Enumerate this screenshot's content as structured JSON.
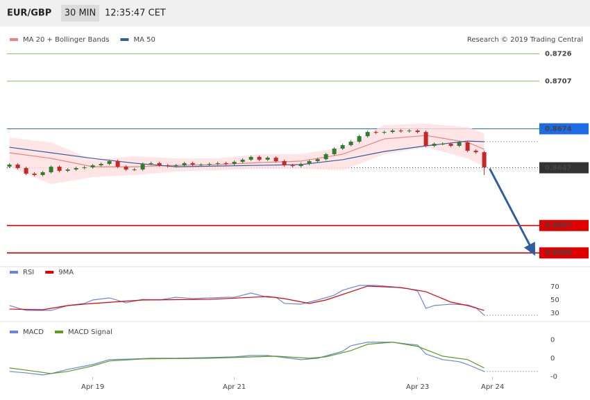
{
  "header": {
    "symbol": "EUR/GBP",
    "interval": "30 MIN",
    "time": "12:35:47 CET"
  },
  "credit": "Research © 2019 Trading Central",
  "chart_data": [
    {
      "type": "candlestick",
      "xlim": [
        -0.3,
        63.45
      ],
      "ylim": [
        0.8578,
        0.8744
      ],
      "up_color": "#2e7d32",
      "down_color": "#c62828",
      "x": [
        0,
        1,
        2,
        3,
        4,
        5,
        6,
        7,
        8,
        9,
        10,
        11,
        12,
        13,
        14,
        15,
        16,
        17,
        18,
        19,
        20,
        21,
        22,
        23,
        24,
        25,
        26,
        27,
        28,
        29,
        30,
        31,
        32,
        33,
        34,
        35,
        36,
        37,
        38,
        39,
        40,
        41,
        42,
        43,
        44,
        45,
        46,
        47,
        48,
        49,
        50,
        51,
        52,
        53,
        54,
        55,
        56,
        57
      ],
      "open": [
        0.86478,
        0.86492,
        0.86468,
        0.86429,
        0.8642,
        0.86439,
        0.86477,
        0.86449,
        0.86458,
        0.86468,
        0.86473,
        0.86487,
        0.86497,
        0.86516,
        0.86477,
        0.86458,
        0.86458,
        0.86497,
        0.86502,
        0.86487,
        0.86482,
        0.86487,
        0.86502,
        0.86492,
        0.86492,
        0.86497,
        0.86502,
        0.86497,
        0.86511,
        0.86526,
        0.86545,
        0.86526,
        0.8654,
        0.86516,
        0.86487,
        0.86482,
        0.86497,
        0.86516,
        0.8653,
        0.86564,
        0.86603,
        0.86627,
        0.86651,
        0.86689,
        0.86718,
        0.86713,
        0.86718,
        0.86728,
        0.86723,
        0.86728,
        0.86718,
        0.86622,
        0.86636,
        0.86636,
        0.86622,
        0.86646,
        0.86588,
        0.86578
      ],
      "high": [
        0.86502,
        0.86502,
        0.86478,
        0.86439,
        0.86449,
        0.86487,
        0.86487,
        0.86468,
        0.86478,
        0.86483,
        0.86497,
        0.86507,
        0.86526,
        0.86526,
        0.86487,
        0.86468,
        0.86507,
        0.86512,
        0.86512,
        0.86497,
        0.86497,
        0.86512,
        0.86512,
        0.86502,
        0.86507,
        0.86512,
        0.86512,
        0.86521,
        0.86536,
        0.86555,
        0.86555,
        0.8655,
        0.8655,
        0.86526,
        0.86497,
        0.86507,
        0.86526,
        0.8654,
        0.86574,
        0.86613,
        0.86637,
        0.86661,
        0.86699,
        0.86728,
        0.86728,
        0.86728,
        0.86738,
        0.86738,
        0.86738,
        0.86738,
        0.86728,
        0.86646,
        0.86646,
        0.86646,
        0.86656,
        0.86656,
        0.86598,
        0.86588
      ],
      "low": [
        0.86468,
        0.86458,
        0.86419,
        0.8641,
        0.8641,
        0.86429,
        0.86439,
        0.86439,
        0.86448,
        0.86458,
        0.86463,
        0.86477,
        0.86487,
        0.86467,
        0.86448,
        0.86448,
        0.86448,
        0.86487,
        0.86477,
        0.86472,
        0.86472,
        0.86477,
        0.86482,
        0.86482,
        0.86482,
        0.86487,
        0.86487,
        0.86487,
        0.86501,
        0.86516,
        0.86516,
        0.86516,
        0.86506,
        0.86477,
        0.86472,
        0.86472,
        0.86487,
        0.86506,
        0.8652,
        0.86554,
        0.86593,
        0.86617,
        0.86641,
        0.86679,
        0.86703,
        0.86703,
        0.86708,
        0.86713,
        0.86713,
        0.86708,
        0.86612,
        0.86612,
        0.86626,
        0.86612,
        0.86612,
        0.86578,
        0.86568,
        0.8642
      ],
      "close": [
        0.86492,
        0.86468,
        0.86429,
        0.8642,
        0.86439,
        0.86477,
        0.86449,
        0.86458,
        0.86468,
        0.86473,
        0.86487,
        0.86497,
        0.86516,
        0.86477,
        0.86458,
        0.86458,
        0.86497,
        0.86502,
        0.86487,
        0.86482,
        0.86487,
        0.86502,
        0.86492,
        0.86492,
        0.86497,
        0.86502,
        0.86497,
        0.86511,
        0.86526,
        0.86545,
        0.86526,
        0.8654,
        0.86516,
        0.86487,
        0.86482,
        0.86497,
        0.86516,
        0.8653,
        0.86564,
        0.86603,
        0.86627,
        0.86651,
        0.86689,
        0.86718,
        0.86713,
        0.86718,
        0.86728,
        0.86723,
        0.86728,
        0.86718,
        0.86622,
        0.86636,
        0.86636,
        0.86622,
        0.86646,
        0.86588,
        0.86578,
        0.86473
      ],
      "series": [
        {
          "name": "MA 20 + Bollinger Bands",
          "color": "#f08080",
          "band_color": "#ffdede",
          "x": [
            0,
            5,
            10,
            15,
            20,
            25,
            30,
            35,
            40,
            45,
            50,
            55,
            57
          ],
          "values": [
            0.86574,
            0.86535,
            0.86477,
            0.86477,
            0.86487,
            0.86492,
            0.86506,
            0.86516,
            0.86564,
            0.8667,
            0.86694,
            0.86646,
            0.86598
          ],
          "upper": [
            0.86679,
            0.86646,
            0.86526,
            0.8655,
            0.86535,
            0.86535,
            0.86564,
            0.86564,
            0.86612,
            0.86766,
            0.86776,
            0.86752,
            0.86708
          ],
          "lower": [
            0.86477,
            0.86357,
            0.86405,
            0.8642,
            0.86444,
            0.86453,
            0.86463,
            0.86463,
            0.86453,
            0.86564,
            0.86612,
            0.86535,
            0.86477
          ]
        },
        {
          "name": "MA 50",
          "color": "#2f5f9e",
          "guide": true,
          "x": [
            0,
            5,
            10,
            15,
            20,
            25,
            30,
            35,
            40,
            45,
            50,
            55,
            57
          ],
          "values": [
            0.86612,
            0.86574,
            0.86535,
            0.86502,
            0.86477,
            0.86482,
            0.86487,
            0.86492,
            0.86526,
            0.86583,
            0.86622,
            0.86655,
            0.86651
          ]
        }
      ],
      "levels": [
        {
          "value": 0.8726,
          "color": "#5a9e1a",
          "boxed": false
        },
        {
          "value": 0.8707,
          "color": "#5a9e1a",
          "boxed": false
        },
        {
          "value": 0.8674,
          "color": "#1e6be6",
          "boxed": true
        },
        {
          "value": 0.8647,
          "color": "#333333",
          "boxed": true,
          "dotted": true
        },
        {
          "value": 0.8607,
          "color": "#e00000",
          "boxed": true
        },
        {
          "value": 0.8588,
          "color": "#e00000",
          "boxed": true
        }
      ]
    },
    {
      "type": "line",
      "xlim": [
        -0.3,
        63.45
      ],
      "ylim": [
        17,
        100
      ],
      "yticks": [
        70,
        50,
        30
      ],
      "series": [
        {
          "name": "RSI",
          "color": "#6a85e0",
          "guide": true,
          "x": [
            0,
            2,
            5,
            7,
            9,
            10,
            12,
            14,
            16,
            18,
            20,
            22,
            24,
            26,
            27,
            29,
            31,
            32,
            33,
            35,
            37,
            39,
            40,
            42,
            44,
            46,
            48,
            49,
            50,
            51,
            53,
            55,
            56,
            57
          ],
          "values": [
            41.5,
            34,
            34,
            41.5,
            44.7,
            50,
            53.2,
            45.7,
            51,
            50,
            54.2,
            52.1,
            53.2,
            54.2,
            54.2,
            60.6,
            54.2,
            54.2,
            44.7,
            43.6,
            50,
            57.4,
            64.9,
            72.3,
            72.3,
            70.2,
            67,
            63.8,
            37.2,
            41.5,
            43.6,
            42.5,
            38.3,
            26.6
          ]
        },
        {
          "name": "9MA",
          "color": "#e00000",
          "x": [
            0,
            4,
            7,
            10,
            16,
            24,
            31,
            33,
            36,
            38,
            41,
            43,
            47,
            50,
            53,
            55,
            57
          ],
          "values": [
            36.1,
            35.1,
            41.5,
            44.7,
            50,
            51,
            55.3,
            52.1,
            44.7,
            50,
            62.7,
            71.3,
            69.1,
            62.7,
            46.8,
            41.5,
            34
          ]
        }
      ]
    },
    {
      "type": "line",
      "xlim": [
        -0.3,
        63.45
      ],
      "ylim": [
        -0.00086,
        0.00075
      ],
      "yticks": [
        {
          "value": 0.0004,
          "label": "0"
        },
        0,
        {
          "value": -0.0004,
          "label": "-0"
        }
      ],
      "xticks": [
        {
          "value": 10,
          "label": "Apr 19"
        },
        {
          "value": 27,
          "label": "Apr 21"
        },
        {
          "value": 49,
          "label": "Apr 23"
        },
        {
          "value": 58,
          "label": "Apr 24"
        }
      ],
      "series": [
        {
          "name": "MACD",
          "color": "#6a85e0",
          "guide": true,
          "x": [
            0,
            2,
            4,
            5,
            7,
            10,
            12,
            15,
            17,
            20,
            24,
            27,
            29,
            31,
            33,
            35,
            37,
            40,
            41,
            43,
            46,
            48,
            49,
            50,
            52,
            54,
            55,
            57
          ],
          "values": [
            -0.000287,
            -0.000317,
            -0.000362,
            -0.000332,
            -0.000242,
            -0.000136,
            -3e-05,
            -1.5e-05,
            0,
            0,
            1.5e-05,
            3e-05,
            6e-05,
            6e-05,
            1.5e-05,
            -3e-05,
            0,
            0.000151,
            0.000272,
            0.000347,
            0.000347,
            0.000302,
            0.000287,
            9.1e-05,
            -3e-05,
            -7.5e-05,
            -0.000136,
            -0.000287
          ]
        },
        {
          "name": "MACD Signal",
          "color": "#5a9e1a",
          "x": [
            0,
            2,
            5,
            7,
            10,
            12,
            16,
            24,
            32,
            36,
            38,
            41,
            43,
            46,
            49,
            52,
            55,
            57
          ],
          "values": [
            -0.000211,
            -0.000257,
            -0.000332,
            -0.000287,
            -0.000166,
            -6e-05,
            -1.5e-05,
            0,
            4.5e-05,
            0,
            3e-05,
            0.000166,
            0.000302,
            0.000347,
            0.000257,
            4.5e-05,
            -3e-05,
            -0.000211
          ]
        }
      ]
    }
  ]
}
